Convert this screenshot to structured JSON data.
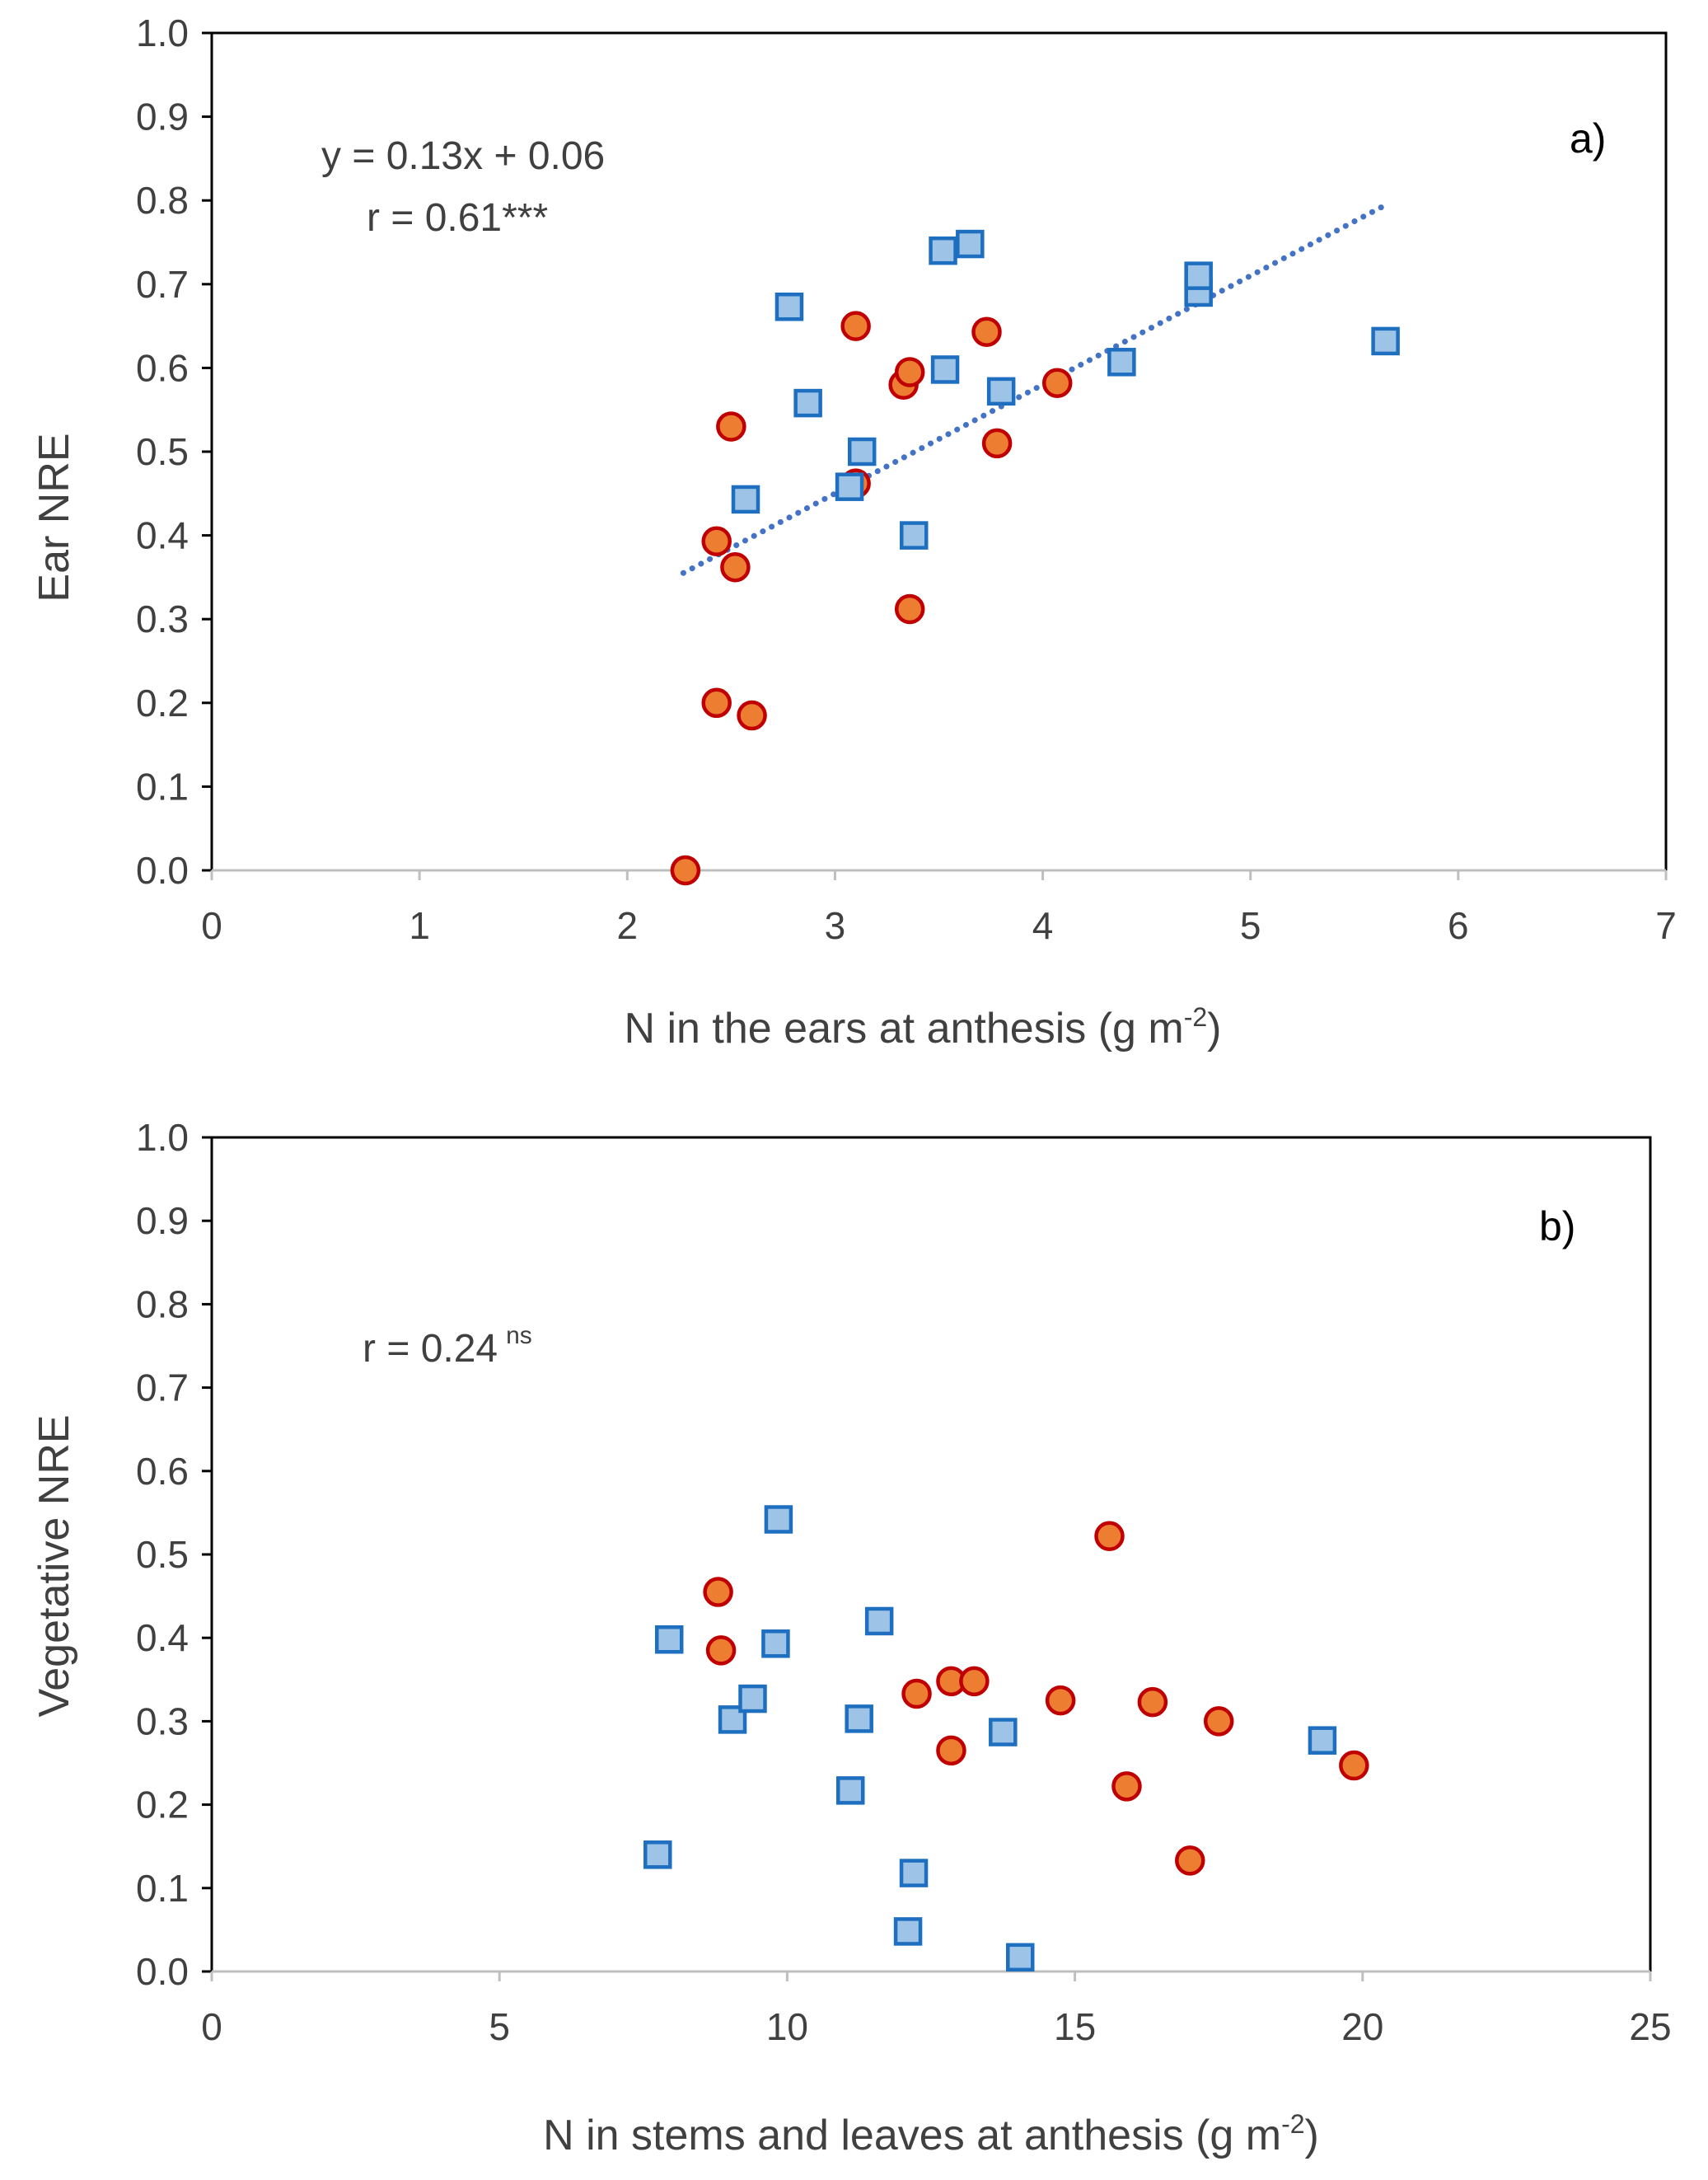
{
  "chart_data": [
    {
      "type": "scatter",
      "panel_label": "a)",
      "xlabel": "N in the ears at anthesis (g m",
      "xlabel_sup": "-2",
      "xlabel_close": ")",
      "ylabel": "Ear NRE",
      "xlim": [
        0,
        7
      ],
      "ylim": [
        0,
        1.0
      ],
      "xticks": [
        "0",
        "1",
        "2",
        "3",
        "4",
        "5",
        "6",
        "7"
      ],
      "yticks": [
        "0.0",
        "0.1",
        "0.2",
        "0.3",
        "0.4",
        "0.5",
        "0.6",
        "0.7",
        "0.8",
        "0.9",
        "1.0"
      ],
      "annotations": {
        "equation": "y = 0.13x + 0.06",
        "r_text": "r = 0.61***"
      },
      "trendline": {
        "slope": 0.13,
        "intercept": 0.06,
        "x_range": [
          2.27,
          5.63
        ],
        "style": "dotted",
        "color": "#4472C4"
      },
      "series": [
        {
          "name": "circles",
          "marker": "circle",
          "fill": "#ED7D31",
          "stroke": "#C00000",
          "points": [
            [
              2.28,
              0.0
            ],
            [
              2.43,
              0.2
            ],
            [
              2.6,
              0.185
            ],
            [
              2.52,
              0.362
            ],
            [
              2.43,
              0.393
            ],
            [
              2.5,
              0.53
            ],
            [
              3.1,
              0.462
            ],
            [
              3.36,
              0.312
            ],
            [
              3.33,
              0.58
            ],
            [
              3.36,
              0.595
            ],
            [
              3.1,
              0.65
            ],
            [
              3.73,
              0.643
            ],
            [
              3.78,
              0.51
            ],
            [
              4.07,
              0.582
            ]
          ]
        },
        {
          "name": "squares",
          "marker": "square",
          "fill": "#9DC3E6",
          "stroke": "#1F6FC0",
          "points": [
            [
              2.57,
              0.443
            ],
            [
              2.78,
              0.673
            ],
            [
              2.87,
              0.558
            ],
            [
              3.07,
              0.458
            ],
            [
              3.13,
              0.5
            ],
            [
              3.38,
              0.4
            ],
            [
              3.53,
              0.598
            ],
            [
              3.52,
              0.74
            ],
            [
              3.65,
              0.748
            ],
            [
              3.8,
              0.572
            ],
            [
              4.38,
              0.607
            ],
            [
              4.75,
              0.69
            ],
            [
              4.75,
              0.71
            ],
            [
              5.65,
              0.632
            ]
          ]
        }
      ]
    },
    {
      "type": "scatter",
      "panel_label": "b)",
      "xlabel": "N in stems and leaves at anthesis (g m",
      "xlabel_sup": "-2",
      "xlabel_close": ")",
      "ylabel": "Vegetative NRE",
      "xlim": [
        0,
        25
      ],
      "ylim": [
        0,
        1.0
      ],
      "xticks": [
        "0",
        "5",
        "10",
        "15",
        "20",
        "25"
      ],
      "yticks": [
        "0.0",
        "0.1",
        "0.2",
        "0.3",
        "0.4",
        "0.5",
        "0.6",
        "0.7",
        "0.8",
        "0.9",
        "1.0"
      ],
      "annotations": {
        "r_text": "r = 0.24",
        "r_sup": "ns"
      },
      "series": [
        {
          "name": "circles",
          "marker": "circle",
          "fill": "#ED7D31",
          "stroke": "#C00000",
          "points": [
            [
              8.8,
              0.455
            ],
            [
              8.85,
              0.385
            ],
            [
              12.25,
              0.333
            ],
            [
              12.85,
              0.348
            ],
            [
              13.25,
              0.348
            ],
            [
              12.85,
              0.265
            ],
            [
              14.75,
              0.325
            ],
            [
              15.6,
              0.522
            ],
            [
              15.9,
              0.222
            ],
            [
              16.35,
              0.323
            ],
            [
              17.0,
              0.133
            ],
            [
              17.5,
              0.3
            ],
            [
              19.85,
              0.247
            ]
          ]
        },
        {
          "name": "squares",
          "marker": "square",
          "fill": "#9DC3E6",
          "stroke": "#1F6FC0",
          "points": [
            [
              7.75,
              0.14
            ],
            [
              7.95,
              0.398
            ],
            [
              9.05,
              0.302
            ],
            [
              9.4,
              0.327
            ],
            [
              9.8,
              0.393
            ],
            [
              9.85,
              0.542
            ],
            [
              11.1,
              0.217
            ],
            [
              11.25,
              0.303
            ],
            [
              11.6,
              0.42
            ],
            [
              12.1,
              0.048
            ],
            [
              12.2,
              0.118
            ],
            [
              13.75,
              0.287
            ],
            [
              14.05,
              0.017
            ],
            [
              19.3,
              0.277
            ]
          ]
        }
      ]
    }
  ]
}
